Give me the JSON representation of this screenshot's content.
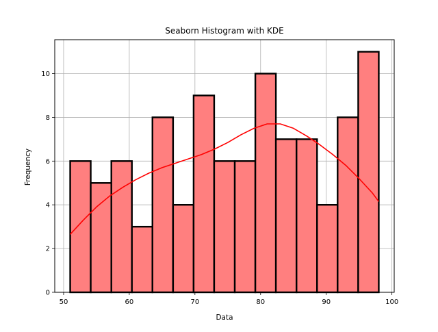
{
  "chart_data": {
    "type": "bar",
    "subtype": "histogram-with-kde",
    "title": "Seaborn Histogram with KDE",
    "xlabel": "Data",
    "ylabel": "Frequency",
    "xlim": [
      48.65,
      100.35
    ],
    "ylim": [
      0,
      11.55
    ],
    "xticks": [
      50,
      60,
      70,
      80,
      90,
      100
    ],
    "yticks": [
      0,
      2,
      4,
      6,
      8,
      10
    ],
    "grid": true,
    "legend": "none",
    "bins": [
      {
        "start": 51.0,
        "end": 54.13,
        "count": 6
      },
      {
        "start": 54.13,
        "end": 57.27,
        "count": 5
      },
      {
        "start": 57.27,
        "end": 60.4,
        "count": 6
      },
      {
        "start": 60.4,
        "end": 63.53,
        "count": 3
      },
      {
        "start": 63.53,
        "end": 66.67,
        "count": 8
      },
      {
        "start": 66.67,
        "end": 69.8,
        "count": 4
      },
      {
        "start": 69.8,
        "end": 72.93,
        "count": 9
      },
      {
        "start": 72.93,
        "end": 76.07,
        "count": 6
      },
      {
        "start": 76.07,
        "end": 79.2,
        "count": 6
      },
      {
        "start": 79.2,
        "end": 82.33,
        "count": 10
      },
      {
        "start": 82.33,
        "end": 85.47,
        "count": 7
      },
      {
        "start": 85.47,
        "end": 88.6,
        "count": 7
      },
      {
        "start": 88.6,
        "end": 91.73,
        "count": 4
      },
      {
        "start": 91.73,
        "end": 94.87,
        "count": 8
      },
      {
        "start": 94.87,
        "end": 98.0,
        "count": 11
      }
    ],
    "kde": {
      "x": [
        51,
        53,
        55,
        57,
        59,
        61,
        63,
        65,
        67,
        69,
        71,
        73,
        75,
        77,
        79,
        81,
        83,
        85,
        87,
        89,
        91,
        93,
        95,
        97,
        98
      ],
      "y": [
        2.65,
        3.3,
        3.9,
        4.4,
        4.8,
        5.15,
        5.45,
        5.7,
        5.9,
        6.1,
        6.3,
        6.55,
        6.85,
        7.2,
        7.5,
        7.7,
        7.7,
        7.5,
        7.15,
        6.75,
        6.3,
        5.8,
        5.2,
        4.55,
        4.15
      ]
    }
  },
  "colors": {
    "bar_fill": "#ff7f7f",
    "bar_edge": "#000000",
    "kde_line": "#ff0000",
    "grid": "#b0b0b0",
    "axes": "#000000"
  }
}
